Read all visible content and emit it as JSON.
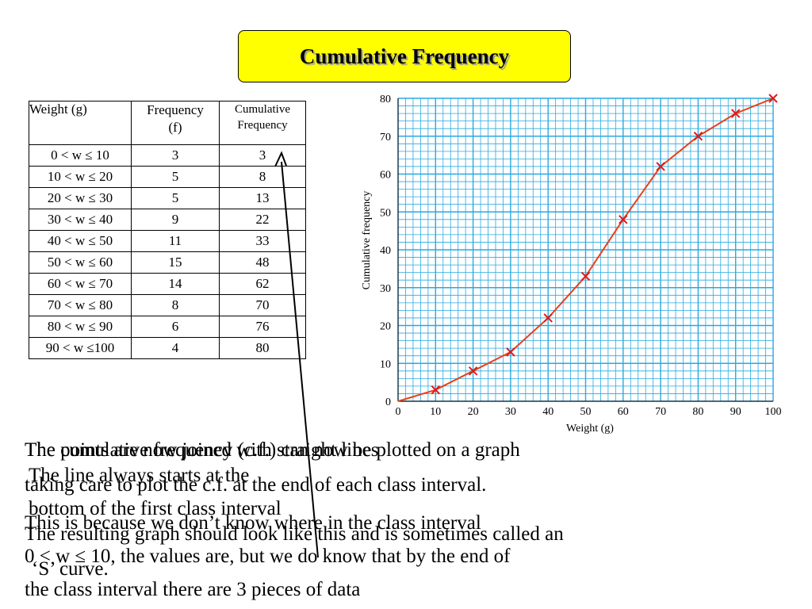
{
  "slide": {
    "title": "Cumulative Frequency"
  },
  "table": {
    "headers": {
      "weight": "Weight (g)",
      "frequency": "Frequency",
      "frequency_symbol": "(f)",
      "cumulative_line1": "Cumulative",
      "cumulative_line2": "Frequency"
    },
    "rows": [
      {
        "interval": "0 < w  ≤ 10",
        "f": "3",
        "cf": "3"
      },
      {
        "interval": "10 < w  ≤ 20",
        "f": "5",
        "cf": "8"
      },
      {
        "interval": "20 < w ≤ 30",
        "f": "5",
        "cf": "13"
      },
      {
        "interval": "30 < w ≤ 40",
        "f": "9",
        "cf": "22"
      },
      {
        "interval": "40 < w ≤ 50",
        "f": "11",
        "cf": "33"
      },
      {
        "interval": "50 < w ≤ 60",
        "f": "15",
        "cf": "48"
      },
      {
        "interval": "60 < w ≤ 70",
        "f": "14",
        "cf": "62"
      },
      {
        "interval": "70 < w ≤ 80",
        "f": "8",
        "cf": "70"
      },
      {
        "interval": "80 < w ≤ 90",
        "f": "6",
        "cf": "76"
      },
      {
        "interval": "90 < w ≤100",
        "f": "4",
        "cf": "80"
      }
    ]
  },
  "chart_data": {
    "type": "line",
    "title": "",
    "xlabel": "Weight (g)",
    "ylabel": "Cumulative frequency",
    "xlim": [
      0,
      100
    ],
    "ylim": [
      0,
      80
    ],
    "x_ticks": [
      "0",
      "10",
      "20",
      "30",
      "40",
      "50",
      "60",
      "70",
      "80",
      "90",
      "100"
    ],
    "y_ticks": [
      "0",
      "10",
      "20",
      "30",
      "40",
      "50",
      "60",
      "70",
      "80"
    ],
    "grid": true,
    "marker": "x",
    "series": [
      {
        "x": [
          0,
          10,
          20,
          30,
          40,
          50,
          60,
          70,
          80,
          90,
          100
        ],
        "y": [
          0,
          3,
          8,
          13,
          22,
          33,
          48,
          62,
          70,
          76,
          80
        ]
      }
    ],
    "colors": {
      "grid": "#29a9e0",
      "line": "#e8401c",
      "marker": "#e01818"
    }
  },
  "overlay": {
    "lines": [
      "The points are now joined with straight lines",
      "The cumulative frequency (c.f.) can now be plotted on a graph",
      "The line always starts at the",
      "taking care to plot the c.f. at the end of each class interval.",
      "bottom of the first class interval",
      "This is because we don’t know where in the class interval",
      "The resulting graph should look like this and is sometimes called an",
      "0 < w  ≤ 10, the values are, but we do know that by the end of",
      "‘S’ curve.",
      "the class interval there are 3 pieces of data"
    ]
  }
}
